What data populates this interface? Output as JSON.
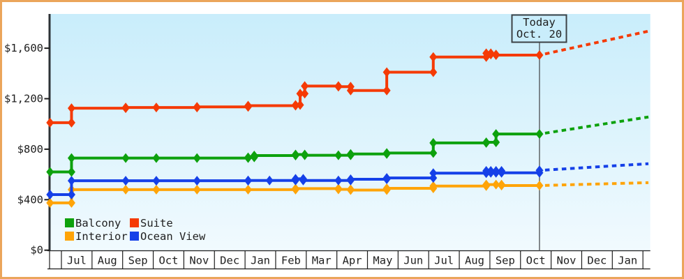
{
  "chart_data": {
    "type": "line",
    "subtype": "stepped-price-history",
    "title": "",
    "today_marker": {
      "line1": "Today",
      "line2": "Oct. 20"
    },
    "y_axis": {
      "tick_labels": [
        "$0",
        "$400",
        "$800",
        "$1,200",
        "$1,600"
      ],
      "tick_values": [
        0,
        400,
        800,
        1200,
        1600
      ],
      "range": [
        0,
        1870
      ],
      "grid": false
    },
    "x_axis": {
      "months": [
        "Jul",
        "Aug",
        "Sep",
        "Oct",
        "Nov",
        "Dec",
        "Jan",
        "Feb",
        "Mar",
        "Apr",
        "May",
        "Jun",
        "Jul",
        "Aug",
        "Sep",
        "Oct",
        "Nov",
        "Dec",
        "Jan"
      ],
      "today_month_index": 15.62
    },
    "legend_position": "bottom-left",
    "series": [
      {
        "name": "Balcony",
        "color": "#0da10d",
        "points": [
          {
            "x": -0.37,
            "date": "Jun 21",
            "price": 620
          },
          {
            "x": 0.33,
            "date": "Jul 13",
            "price": 730
          },
          {
            "x": 2.1,
            "date": "Sep 6",
            "price": 730
          },
          {
            "x": 3.1,
            "date": "Oct 6",
            "price": 730
          },
          {
            "x": 4.43,
            "date": "Nov 15",
            "price": 730
          },
          {
            "x": 6.1,
            "date": "Jan 5",
            "price": 735
          },
          {
            "x": 6.3,
            "date": "Jan 11",
            "price": 750
          },
          {
            "x": 7.65,
            "date": "Feb 22",
            "price": 758
          },
          {
            "x": 7.95,
            "date": "Mar 2",
            "price": 752
          },
          {
            "x": 9.05,
            "date": "Apr 4",
            "price": 752
          },
          {
            "x": 9.45,
            "date": "Apr 16",
            "price": 762
          },
          {
            "x": 10.63,
            "date": "May 21",
            "price": 770
          },
          {
            "x": 12.15,
            "date": "Jul 7",
            "price": 850
          },
          {
            "x": 13.88,
            "date": "Aug 30",
            "price": 855
          },
          {
            "x": 14.2,
            "date": "Sep 9",
            "price": 920
          },
          {
            "x": 15.62,
            "date": "Oct 20",
            "price": 920
          }
        ],
        "projection": {
          "x": 19.18,
          "price": 1055
        }
      },
      {
        "name": "Suite",
        "color": "#f53a05",
        "points": [
          {
            "x": -0.37,
            "date": "Jun 21",
            "price": 1010
          },
          {
            "x": 0.33,
            "date": "Jul 13",
            "price": 1125
          },
          {
            "x": 2.1,
            "date": "Sep 6",
            "price": 1130
          },
          {
            "x": 3.1,
            "date": "Oct 6",
            "price": 1130
          },
          {
            "x": 4.43,
            "date": "Nov 15",
            "price": 1135
          },
          {
            "x": 6.1,
            "date": "Jan 5",
            "price": 1145
          },
          {
            "x": 7.65,
            "date": "Feb 22",
            "price": 1150
          },
          {
            "x": 7.8,
            "date": "Feb 27",
            "price": 1240
          },
          {
            "x": 7.95,
            "date": "Mar 2",
            "price": 1300
          },
          {
            "x": 9.05,
            "date": "Apr 4",
            "price": 1295
          },
          {
            "x": 9.45,
            "date": "Apr 16",
            "price": 1265
          },
          {
            "x": 10.63,
            "date": "May 21",
            "price": 1410
          },
          {
            "x": 12.15,
            "date": "Jul 7",
            "price": 1530
          },
          {
            "x": 13.88,
            "date": "Aug 30",
            "price": 1560
          },
          {
            "x": 14.03,
            "date": "Sep 4",
            "price": 1550
          },
          {
            "x": 14.2,
            "date": "Sep 9",
            "price": 1545
          },
          {
            "x": 15.62,
            "date": "Oct 20",
            "price": 1545
          }
        ],
        "projection": {
          "x": 19.18,
          "price": 1735
        }
      },
      {
        "name": "Interior",
        "color": "#ffa408",
        "points": [
          {
            "x": -0.37,
            "date": "Jun 21",
            "price": 375
          },
          {
            "x": 0.33,
            "date": "Jul 13",
            "price": 480
          },
          {
            "x": 2.1,
            "date": "Sep 6",
            "price": 480
          },
          {
            "x": 3.1,
            "date": "Oct 6",
            "price": 480
          },
          {
            "x": 4.43,
            "date": "Nov 15",
            "price": 480
          },
          {
            "x": 6.1,
            "date": "Jan 5",
            "price": 480
          },
          {
            "x": 7.65,
            "date": "Feb 22",
            "price": 488
          },
          {
            "x": 9.05,
            "date": "Apr 4",
            "price": 482
          },
          {
            "x": 9.45,
            "date": "Apr 16",
            "price": 476
          },
          {
            "x": 10.63,
            "date": "May 21",
            "price": 490
          },
          {
            "x": 12.15,
            "date": "Jul 7",
            "price": 508
          },
          {
            "x": 13.88,
            "date": "Aug 30",
            "price": 520
          },
          {
            "x": 14.2,
            "date": "Sep 9",
            "price": 520
          },
          {
            "x": 14.38,
            "date": "Sep 13",
            "price": 512
          },
          {
            "x": 15.62,
            "date": "Oct 20",
            "price": 512
          }
        ],
        "projection": {
          "x": 19.18,
          "price": 535
        }
      },
      {
        "name": "Ocean View",
        "color": "#1540e8",
        "points": [
          {
            "x": -0.37,
            "date": "Jun 21",
            "price": 440
          },
          {
            "x": 0.33,
            "date": "Jul 13",
            "price": 550
          },
          {
            "x": 2.1,
            "date": "Sep 6",
            "price": 550
          },
          {
            "x": 3.1,
            "date": "Oct 6",
            "price": 550
          },
          {
            "x": 4.43,
            "date": "Nov 15",
            "price": 550
          },
          {
            "x": 6.1,
            "date": "Jan 5",
            "price": 552
          },
          {
            "x": 6.8,
            "date": "Jan 25",
            "price": 552
          },
          {
            "x": 7.65,
            "date": "Feb 22",
            "price": 565
          },
          {
            "x": 7.9,
            "date": "Mar 1",
            "price": 552
          },
          {
            "x": 9.05,
            "date": "Apr 4",
            "price": 552
          },
          {
            "x": 9.45,
            "date": "Apr 16",
            "price": 562
          },
          {
            "x": 10.63,
            "date": "May 21",
            "price": 572
          },
          {
            "x": 12.15,
            "date": "Jul 7",
            "price": 610
          },
          {
            "x": 13.88,
            "date": "Aug 30",
            "price": 628
          },
          {
            "x": 14.03,
            "date": "Sep 4",
            "price": 613
          },
          {
            "x": 14.2,
            "date": "Sep 9",
            "price": 628
          },
          {
            "x": 14.38,
            "date": "Sep 13",
            "price": 613
          },
          {
            "x": 15.62,
            "date": "Oct 20",
            "price": 632
          }
        ],
        "projection": {
          "x": 19.18,
          "price": 685
        }
      }
    ]
  },
  "legend": {
    "items": [
      {
        "label": "Balcony",
        "color": "#0da10d"
      },
      {
        "label": "Suite",
        "color": "#f53a05"
      },
      {
        "label": "Interior",
        "color": "#ffa408"
      },
      {
        "label": "Ocean View",
        "color": "#1540e8"
      }
    ]
  },
  "colors": {
    "frame_border": "#eba55b",
    "plot_bg_top": "#c9edfb",
    "plot_bg_bottom": "#f1fafe",
    "axis": "#2d3236",
    "grid_lines": "#1d1d1d",
    "today_line": "#55595c",
    "text": "#1f1f1f"
  }
}
